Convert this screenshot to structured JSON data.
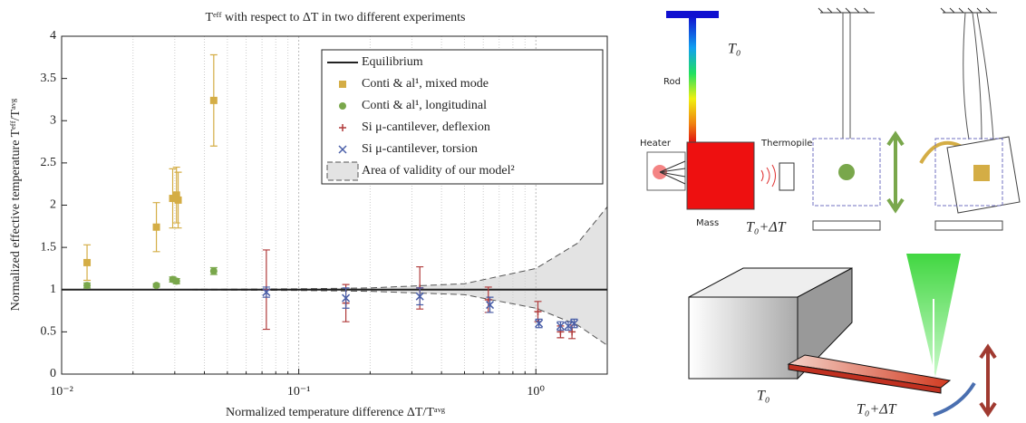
{
  "chart_data": {
    "type": "errorbar",
    "title": "Tᵉᶠᶠ with respect to ΔT in two different experiments",
    "x_label": "Normalized temperature difference ΔT/Tᵃᵛᵍ",
    "y_label": "Normalized effective temperature Tᵉᶠᶠ/Tᵃᵛᵍ",
    "log_x": true,
    "grid": true,
    "legend": "upper right",
    "xlim": [
      0.01,
      2
    ],
    "ylim": [
      0,
      4
    ],
    "xticks": [
      {
        "value": 0.01,
        "label": "10⁻²"
      },
      {
        "value": 0.1,
        "label": "10⁻¹"
      },
      {
        "value": 1,
        "label": "10⁰"
      }
    ],
    "xminorticks": [
      0.02,
      0.03,
      0.04,
      0.05,
      0.06,
      0.07,
      0.08,
      0.09,
      0.2,
      0.3,
      0.4,
      0.5,
      0.6,
      0.7,
      0.8,
      0.9
    ],
    "yticks": [
      0,
      0.5,
      1,
      1.5,
      2,
      2.5,
      3,
      3.5,
      4
    ],
    "equilibrium": {
      "name": "Equilibrium",
      "value": 1,
      "color": "#222222"
    },
    "series": [
      {
        "name": "Conti & al¹, mixed mode",
        "marker": "square",
        "color": "#d4ad45",
        "x": [
          0.0128,
          0.0251,
          0.0294,
          0.0305,
          0.031,
          0.0438
        ],
        "values": [
          1.32,
          1.74,
          2.08,
          2.12,
          2.06,
          3.24
        ],
        "errors": [
          0.21,
          0.29,
          0.35,
          0.33,
          0.33,
          0.54
        ]
      },
      {
        "name": "Conti & al¹, longitudinal",
        "marker": "circle",
        "color": "#79a74b",
        "x": [
          0.0128,
          0.0251,
          0.0294,
          0.0305,
          0.0438
        ],
        "values": [
          1.05,
          1.05,
          1.12,
          1.1,
          1.22
        ],
        "errors": [
          0.03,
          0.02,
          0.03,
          0.03,
          0.04
        ]
      },
      {
        "name": "Si μ-cantilever, deflexion",
        "marker": "plus",
        "color": "#b03a3a",
        "x": [
          0.073,
          0.158,
          0.324,
          0.63,
          1.02,
          1.27,
          1.42
        ],
        "values": [
          1.0,
          0.84,
          1.02,
          0.88,
          0.74,
          0.5,
          0.5
        ],
        "errors": [
          0.47,
          0.22,
          0.25,
          0.15,
          0.12,
          0.07,
          0.08
        ]
      },
      {
        "name": "Si μ-cantilever, torsion",
        "marker": "cross",
        "color": "#4a5fa8",
        "x": [
          0.073,
          0.158,
          0.324,
          0.64,
          1.03,
          1.27,
          1.37,
          1.45
        ],
        "values": [
          0.97,
          0.9,
          0.92,
          0.82,
          0.6,
          0.57,
          0.57,
          0.6
        ],
        "errors": [
          0.06,
          0.12,
          0.1,
          0.09,
          0.05,
          0.05,
          0.05,
          0.05
        ]
      }
    ],
    "area": {
      "name": "Area of validity of our model²",
      "color": "#e3e3e3",
      "x": [
        0.01,
        0.02,
        0.05,
        0.1,
        0.2,
        0.5,
        1,
        1.5,
        2
      ],
      "upper": [
        1,
        1,
        1.005,
        1.01,
        1.02,
        1.07,
        1.25,
        1.55,
        1.98
      ],
      "lower": [
        1,
        1,
        0.995,
        0.99,
        0.98,
        0.94,
        0.78,
        0.58,
        0.34
      ]
    }
  },
  "diagram": {
    "t0_top": "T₀",
    "rod": "Rod",
    "heater": "Heater",
    "thermopile": "Thermopile",
    "mass": "Mass",
    "t0dt_top": "T₀+ΔT",
    "t0_bottom": "T₀",
    "t0dt_bottom": "T₀+ΔT"
  }
}
